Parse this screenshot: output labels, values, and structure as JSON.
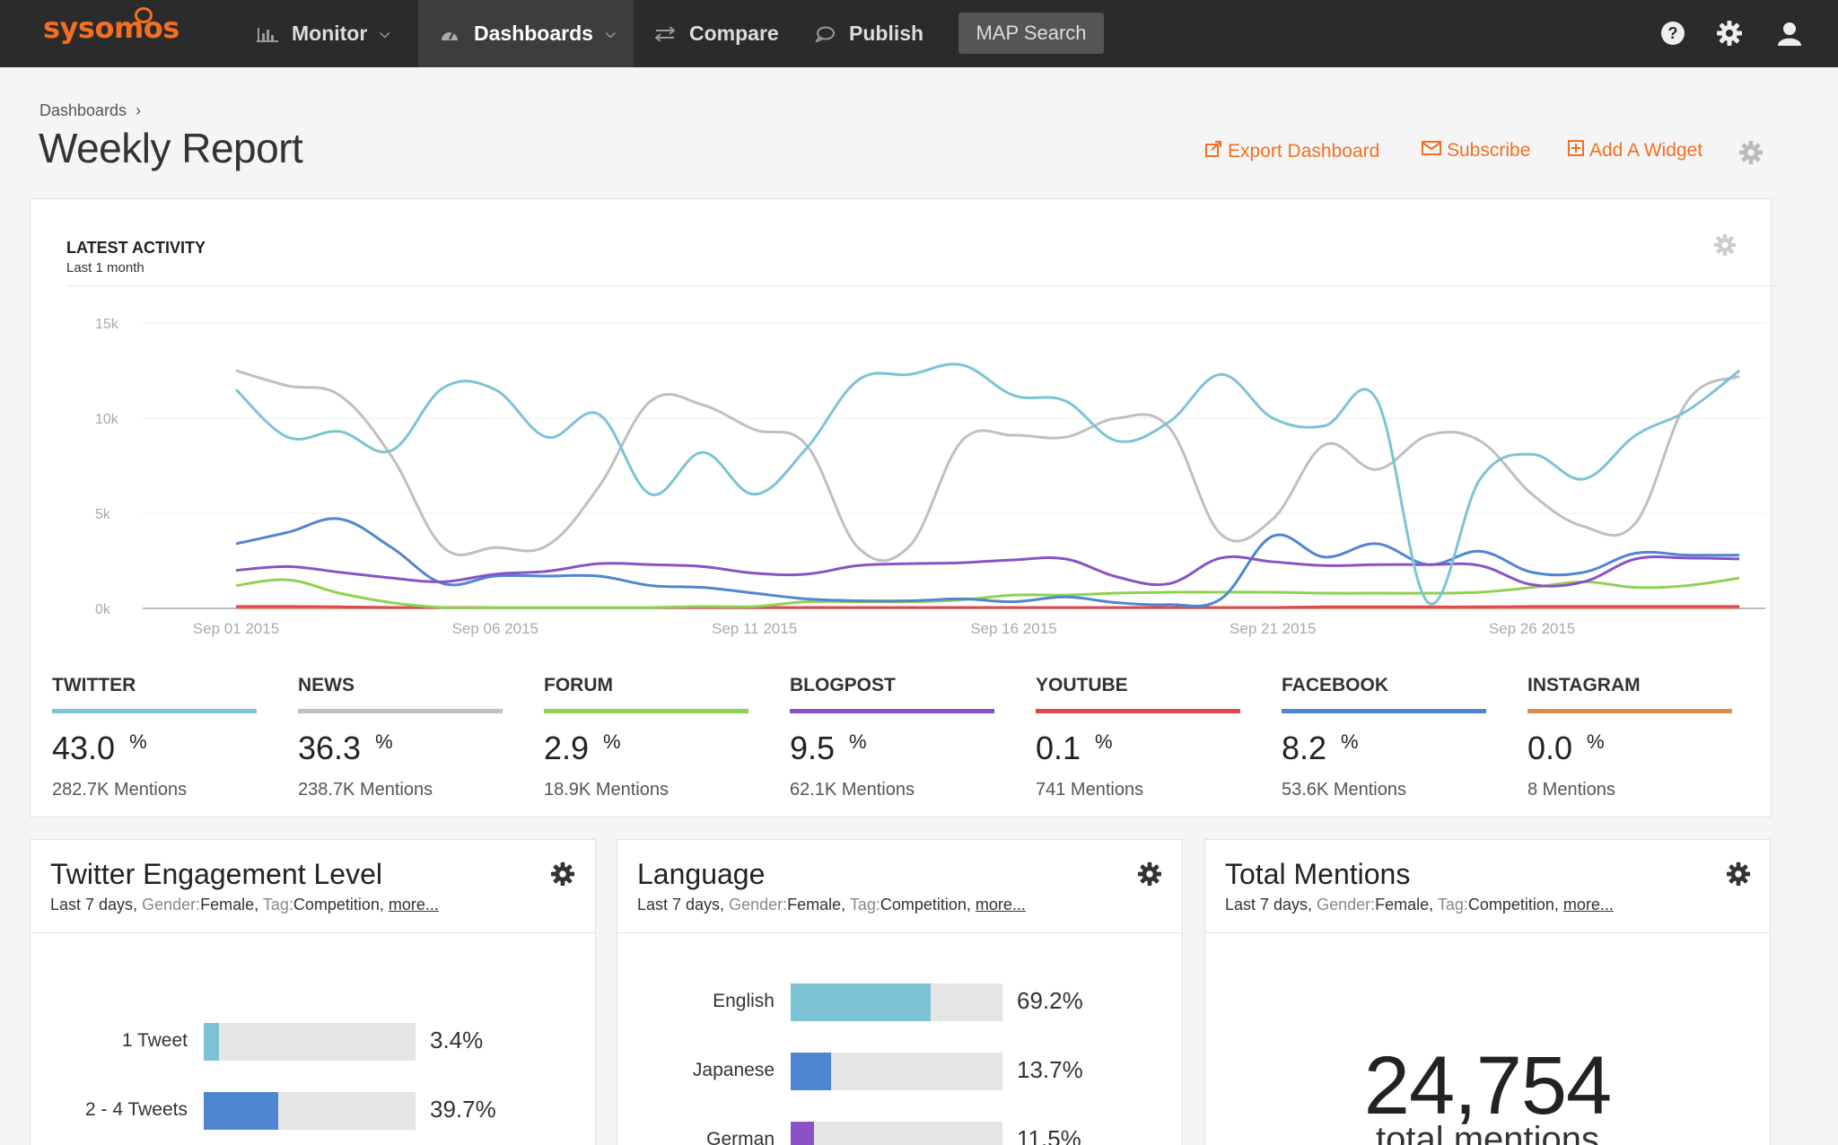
{
  "brand": {
    "logo": "sysomos"
  },
  "nav": {
    "items": [
      {
        "label": "Monitor",
        "icon": "bar-chart-icon",
        "has_caret": true
      },
      {
        "label": "Dashboards",
        "icon": "dashboard-gauge-icon",
        "has_caret": true,
        "active": true
      },
      {
        "label": "Compare",
        "icon": "compare-arrows-icon"
      },
      {
        "label": "Publish",
        "icon": "chat-bubble-icon"
      }
    ],
    "map_search": "MAP Search",
    "right_icons": [
      "help-icon",
      "settings-gear-icon",
      "user-icon"
    ]
  },
  "breadcrumb": {
    "root": "Dashboards",
    "sep": "›"
  },
  "page": {
    "title": "Weekly Report"
  },
  "actions": {
    "export": "Export Dashboard",
    "subscribe": "Subscribe",
    "add_widget": "Add A Widget"
  },
  "activity": {
    "title": "LATEST ACTIVITY",
    "subtitle": "Last 1 month",
    "stats": [
      {
        "name": "TWITTER",
        "pct": "43.0",
        "pct_sign": "%",
        "mentions": "282.7K Mentions",
        "color": "#7cc4d5"
      },
      {
        "name": "NEWS",
        "pct": "36.3",
        "pct_sign": "%",
        "mentions": "238.7K Mentions",
        "color": "#bfbfbf"
      },
      {
        "name": "FORUM",
        "pct": "2.9",
        "pct_sign": "%",
        "mentions": "18.9K Mentions",
        "color": "#8fd150"
      },
      {
        "name": "BLOGPOST",
        "pct": "9.5",
        "pct_sign": "%",
        "mentions": "62.1K Mentions",
        "color": "#8a52c6"
      },
      {
        "name": "YOUTUBE",
        "pct": "0.1",
        "pct_sign": "%",
        "mentions": "741 Mentions",
        "color": "#e0474e"
      },
      {
        "name": "FACEBOOK",
        "pct": "8.2",
        "pct_sign": "%",
        "mentions": "53.6K Mentions",
        "color": "#4f86d1"
      },
      {
        "name": "INSTAGRAM",
        "pct": "0.0",
        "pct_sign": "%",
        "mentions": "8 Mentions",
        "color": "#dc8d47"
      }
    ]
  },
  "chart_data": {
    "type": "line",
    "title": "",
    "y_ticks": [
      "0k",
      "5k",
      "10k",
      "15k"
    ],
    "ylim": [
      0,
      15000
    ],
    "x_tick_labels": [
      "Sep 01 2015",
      "Sep 06 2015",
      "Sep 11 2015",
      "Sep 16 2015",
      "Sep 21 2015",
      "Sep 26 2015"
    ],
    "x_tick_days": [
      1,
      6,
      11,
      16,
      21,
      26
    ],
    "x_range_days": [
      -0.8,
      30.5
    ],
    "grid": true,
    "series": [
      {
        "name": "TWITTER",
        "color": "#7cc4d5",
        "x": [
          1,
          2,
          3,
          4,
          5,
          6,
          7,
          8,
          9,
          10,
          11,
          12,
          13,
          14,
          15,
          16,
          17,
          18,
          19,
          20,
          21,
          22,
          23,
          24,
          25,
          26,
          27,
          28,
          29,
          30
        ],
        "values": [
          11500,
          9000,
          9300,
          8300,
          11600,
          11500,
          9000,
          10200,
          6000,
          8200,
          6000,
          8400,
          12000,
          12300,
          12800,
          11200,
          10900,
          8800,
          9800,
          12300,
          10000,
          9600,
          11000,
          300,
          6800,
          8100,
          6800,
          9100,
          10400,
          12500
        ]
      },
      {
        "name": "NEWS",
        "color": "#bfbfbf",
        "x": [
          1,
          2,
          3,
          4,
          5,
          6,
          7,
          8,
          9,
          10,
          11,
          12,
          13,
          14,
          15,
          16,
          17,
          18,
          19,
          20,
          21,
          22,
          23,
          24,
          25,
          26,
          27,
          28,
          29,
          30
        ],
        "values": [
          12500,
          11700,
          11200,
          8000,
          3200,
          3200,
          3300,
          6400,
          10900,
          10700,
          9400,
          8600,
          3200,
          3300,
          8800,
          9100,
          9000,
          10000,
          9500,
          3900,
          4700,
          8600,
          7300,
          9100,
          8800,
          6000,
          4300,
          4500,
          10900,
          12200
        ]
      },
      {
        "name": "FORUM",
        "color": "#8fd150",
        "x": [
          1,
          2,
          3,
          4,
          5,
          6,
          7,
          8,
          9,
          10,
          11,
          12,
          13,
          14,
          15,
          16,
          17,
          18,
          19,
          20,
          21,
          22,
          23,
          24,
          25,
          26,
          27,
          28,
          29,
          30
        ],
        "values": [
          1200,
          1500,
          800,
          300,
          0,
          0,
          0,
          50,
          50,
          100,
          100,
          350,
          350,
          350,
          450,
          700,
          700,
          800,
          850,
          850,
          850,
          800,
          800,
          800,
          850,
          1100,
          1400,
          1100,
          1200,
          1600
        ]
      },
      {
        "name": "BLOGPOST",
        "color": "#8a52c6",
        "x": [
          1,
          2,
          3,
          4,
          5,
          6,
          7,
          8,
          9,
          10,
          11,
          12,
          13,
          14,
          15,
          16,
          17,
          18,
          19,
          20,
          21,
          22,
          23,
          24,
          25,
          26,
          27,
          28,
          29,
          30
        ],
        "values": [
          2000,
          2200,
          1900,
          1600,
          1400,
          1800,
          1950,
          2350,
          2300,
          2200,
          1850,
          1800,
          2250,
          2350,
          2400,
          2550,
          2600,
          1650,
          1300,
          2650,
          2450,
          2250,
          2300,
          2300,
          2250,
          1250,
          1400,
          2600,
          2650,
          2600
        ]
      },
      {
        "name": "YOUTUBE",
        "color": "#e0474e",
        "x": [
          1,
          2,
          3,
          4,
          5,
          6,
          7,
          8,
          9,
          10,
          11,
          12,
          13,
          14,
          15,
          16,
          17,
          18,
          19,
          20,
          21,
          22,
          23,
          24,
          25,
          26,
          27,
          28,
          29,
          30
        ],
        "values": [
          100,
          100,
          80,
          50,
          20,
          20,
          20,
          20,
          20,
          20,
          20,
          20,
          20,
          20,
          20,
          20,
          20,
          20,
          20,
          30,
          50,
          80,
          80,
          80,
          80,
          100,
          100,
          100,
          100,
          100
        ]
      },
      {
        "name": "FACEBOOK",
        "color": "#4f86d1",
        "x": [
          1,
          2,
          3,
          4,
          5,
          6,
          7,
          8,
          9,
          10,
          11,
          12,
          13,
          14,
          15,
          16,
          17,
          18,
          19,
          20,
          21,
          22,
          23,
          24,
          25,
          26,
          27,
          28,
          29,
          30
        ],
        "values": [
          3400,
          4000,
          4700,
          3200,
          1300,
          1700,
          1700,
          1700,
          1200,
          1100,
          800,
          500,
          400,
          400,
          500,
          350,
          600,
          300,
          200,
          500,
          3800,
          2700,
          3400,
          2300,
          3000,
          1900,
          1900,
          2900,
          2800,
          2800
        ]
      },
      {
        "name": "INSTAGRAM",
        "color": "#dc8d47",
        "x": [
          1,
          30
        ],
        "values": [
          0,
          0
        ]
      }
    ]
  },
  "widgets": {
    "engagement": {
      "title": "Twitter Engagement Level",
      "sub_range": "Last 7 days, ",
      "sub_gender_key": "Gender:",
      "sub_gender_val": "Female, ",
      "sub_tag_key": "Tag:",
      "sub_tag_val": "Competition, ",
      "sub_more": "more...",
      "rows": [
        {
          "label": "1 Tweet",
          "value": "3.4%",
          "fraction": 0.07,
          "color": "#7cc4d5"
        },
        {
          "label": "2 - 4 Tweets",
          "value": "39.7%",
          "fraction": 0.35,
          "color": "#4f86d1"
        }
      ]
    },
    "language": {
      "title": "Language",
      "sub_range": "Last 7 days, ",
      "sub_gender_key": "Gender:",
      "sub_gender_val": "Female, ",
      "sub_tag_key": "Tag:",
      "sub_tag_val": "Competition, ",
      "sub_more": "more...",
      "rows": [
        {
          "label": "English",
          "value": "69.2%",
          "fraction": 0.66,
          "color": "#7cc4d5"
        },
        {
          "label": "Japanese",
          "value": "13.7%",
          "fraction": 0.19,
          "color": "#4f86d1"
        },
        {
          "label": "German",
          "value": "11.5%",
          "fraction": 0.11,
          "color": "#8a52c6"
        }
      ]
    },
    "total": {
      "title": "Total Mentions",
      "sub_range": "Last 7 days, ",
      "sub_gender_key": "Gender:",
      "sub_gender_val": "Female, ",
      "sub_tag_key": "Tag:",
      "sub_tag_val": "Competition, ",
      "sub_more": "more...",
      "number": "24,754",
      "label": "total mentions"
    }
  }
}
